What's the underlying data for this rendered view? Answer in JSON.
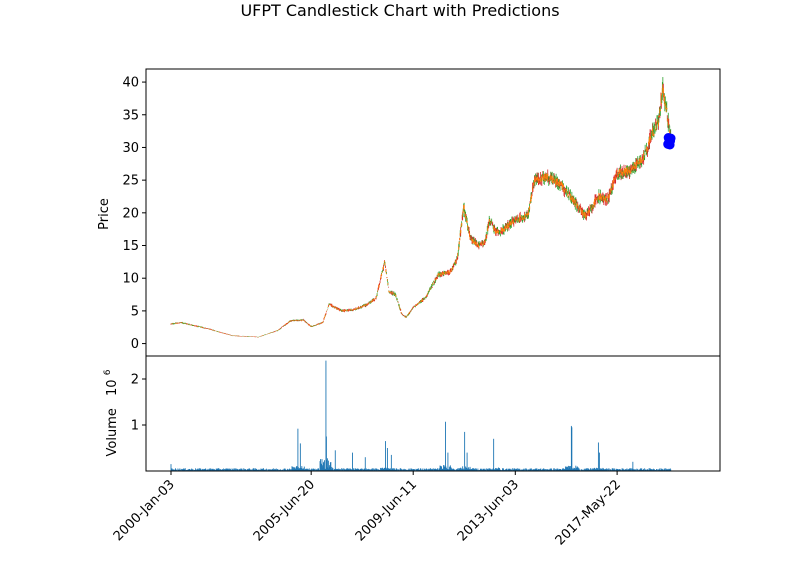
{
  "chart_data": [
    {
      "type": "candlestick",
      "title": "UFPT Candlestick Chart with Predictions",
      "ylabel": "Price",
      "ylim": [
        -1.9,
        42.0
      ],
      "yticks": [
        0,
        5,
        10,
        15,
        20,
        25,
        30,
        35,
        40
      ],
      "grid": false,
      "colors": {
        "up": "#2ca02c",
        "down": "#d62728",
        "body_overlay": "#ff7f0e",
        "prediction": "#0000ff"
      },
      "date_range": [
        "2000-01-03",
        "2019-06-28"
      ],
      "price_anchors": [
        [
          "2000-01-03",
          3.0
        ],
        [
          "2000-06-01",
          3.2
        ],
        [
          "2001-06-01",
          2.3
        ],
        [
          "2002-06-01",
          1.2
        ],
        [
          "2003-06-01",
          1.0
        ],
        [
          "2004-03-01",
          2.0
        ],
        [
          "2004-09-01",
          3.5
        ],
        [
          "2005-03-01",
          3.6
        ],
        [
          "2005-06-20",
          2.6
        ],
        [
          "2005-12-01",
          3.2
        ],
        [
          "2006-03-01",
          6.0
        ],
        [
          "2006-09-01",
          5.0
        ],
        [
          "2007-03-01",
          5.2
        ],
        [
          "2007-09-01",
          6.0
        ],
        [
          "2008-01-01",
          7.0
        ],
        [
          "2008-05-01",
          12.5
        ],
        [
          "2008-07-01",
          8.0
        ],
        [
          "2008-10-01",
          7.5
        ],
        [
          "2009-01-01",
          4.5
        ],
        [
          "2009-03-01",
          4.0
        ],
        [
          "2009-06-11",
          5.5
        ],
        [
          "2009-12-01",
          7.0
        ],
        [
          "2010-06-01",
          10.5
        ],
        [
          "2010-12-01",
          11.0
        ],
        [
          "2011-03-01",
          13.0
        ],
        [
          "2011-06-01",
          21.0
        ],
        [
          "2011-09-01",
          16.0
        ],
        [
          "2012-01-01",
          15.0
        ],
        [
          "2012-04-01",
          15.5
        ],
        [
          "2012-06-01",
          19.0
        ],
        [
          "2012-09-01",
          17.0
        ],
        [
          "2013-01-01",
          17.5
        ],
        [
          "2013-06-03",
          19.0
        ],
        [
          "2013-12-01",
          19.5
        ],
        [
          "2014-03-01",
          25.0
        ],
        [
          "2014-09-01",
          25.5
        ],
        [
          "2015-03-01",
          24.5
        ],
        [
          "2015-09-01",
          22.0
        ],
        [
          "2016-03-01",
          19.5
        ],
        [
          "2016-09-01",
          22.5
        ],
        [
          "2017-01-01",
          22.0
        ],
        [
          "2017-05-22",
          26.0
        ],
        [
          "2017-12-01",
          26.5
        ],
        [
          "2018-06-01",
          28.5
        ],
        [
          "2018-10-01",
          32.0
        ],
        [
          "2019-01-01",
          34.0
        ],
        [
          "2019-03-01",
          39.0
        ],
        [
          "2019-04-15",
          36.5
        ],
        [
          "2019-06-28",
          31.0
        ]
      ],
      "predictions": {
        "x": [
          "2019-05-15",
          "2019-05-22",
          "2019-05-29",
          "2019-06-05",
          "2019-06-12",
          "2019-06-19",
          "2019-06-26"
        ],
        "y": [
          30.5,
          31.5,
          30.8,
          31.2,
          30.4,
          31.0,
          31.4
        ]
      }
    },
    {
      "type": "bar",
      "ylabel": "Volume",
      "unit": "10",
      "unit_exponent": "6",
      "ylim": [
        0,
        2.5
      ],
      "yticks": [
        1,
        2
      ],
      "color": "#1f77b4",
      "xticks": [
        "2000-Jan-03",
        "2005-Jun-20",
        "2009-Jun-11",
        "2013-Jun-03",
        "2017-May-22"
      ],
      "baseline_volume": 0.04,
      "volume_spikes": [
        [
          "2000-01-03",
          0.15
        ],
        [
          "2004-12-15",
          0.92
        ],
        [
          "2005-01-20",
          0.6
        ],
        [
          "2006-01-15",
          2.4
        ],
        [
          "2006-01-25",
          0.75
        ],
        [
          "2006-06-01",
          0.45
        ],
        [
          "2007-02-01",
          0.4
        ],
        [
          "2007-08-01",
          0.3
        ],
        [
          "2008-05-15",
          0.65
        ],
        [
          "2008-06-10",
          0.5
        ],
        [
          "2008-08-01",
          0.35
        ],
        [
          "2010-09-15",
          1.07
        ],
        [
          "2010-10-15",
          0.4
        ],
        [
          "2011-06-10",
          0.85
        ],
        [
          "2011-07-15",
          0.4
        ],
        [
          "2012-08-01",
          0.7
        ],
        [
          "2015-08-10",
          0.98
        ],
        [
          "2015-08-20",
          0.95
        ],
        [
          "2016-09-01",
          0.62
        ],
        [
          "2016-09-15",
          0.4
        ],
        [
          "2018-01-01",
          0.2
        ]
      ]
    }
  ]
}
